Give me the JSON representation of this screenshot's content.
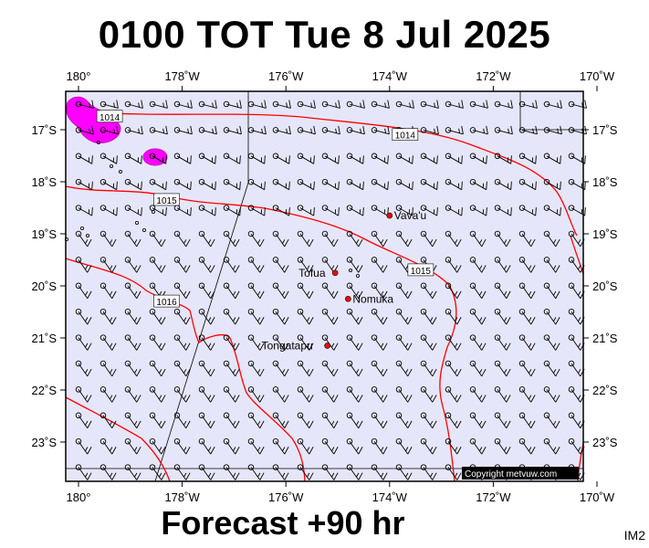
{
  "title": "0100 TOT Tue 8 Jul 2025",
  "footer": "Forecast +90 hr",
  "corner_tag": "IM2",
  "copyright": "Copyright metvuw.com",
  "colors": {
    "ocean": "#e6e6fa",
    "isobar": "#ff0000",
    "pressure_blob": "#ff00ff",
    "town_marker": "#ff0000"
  },
  "map": {
    "lon_min": 179.8,
    "lon_max": 169.8,
    "lat_min": -23.6,
    "lat_max": -16.3,
    "x_ticks": [
      {
        "value": 180,
        "label": "180°"
      },
      {
        "value": -178,
        "label": "178˚W"
      },
      {
        "value": -176,
        "label": "176˚W"
      },
      {
        "value": -174,
        "label": "174˚W"
      },
      {
        "value": -172,
        "label": "172˚W"
      },
      {
        "value": -170,
        "label": "170˚W"
      }
    ],
    "y_ticks": [
      {
        "value": -17,
        "label": "17˚S"
      },
      {
        "value": -18,
        "label": "18˚S"
      },
      {
        "value": -19,
        "label": "19˚S"
      },
      {
        "value": -20,
        "label": "20˚S"
      },
      {
        "value": -21,
        "label": "21˚S"
      },
      {
        "value": -22,
        "label": "22˚S"
      },
      {
        "value": -23,
        "label": "23˚S"
      }
    ],
    "places": [
      {
        "name": "Vava'u",
        "lon": -174.0,
        "lat": -18.65
      },
      {
        "name": "Tofua",
        "lon": -175.05,
        "lat": -19.75
      },
      {
        "name": "Nomuka",
        "lon": -174.8,
        "lat": -20.25
      },
      {
        "name": "Tongatapu",
        "lon": -175.2,
        "lat": -21.15
      }
    ],
    "isobar_labels": [
      {
        "text": "1014",
        "lon": -179.4,
        "lat": -16.75
      },
      {
        "text": "1014",
        "lon": -173.7,
        "lat": -17.1
      },
      {
        "text": "1015",
        "lon": -178.3,
        "lat": -18.35
      },
      {
        "text": "1015",
        "lon": -173.4,
        "lat": -19.7
      },
      {
        "text": "1016",
        "lon": -178.3,
        "lat": -20.3
      }
    ]
  }
}
